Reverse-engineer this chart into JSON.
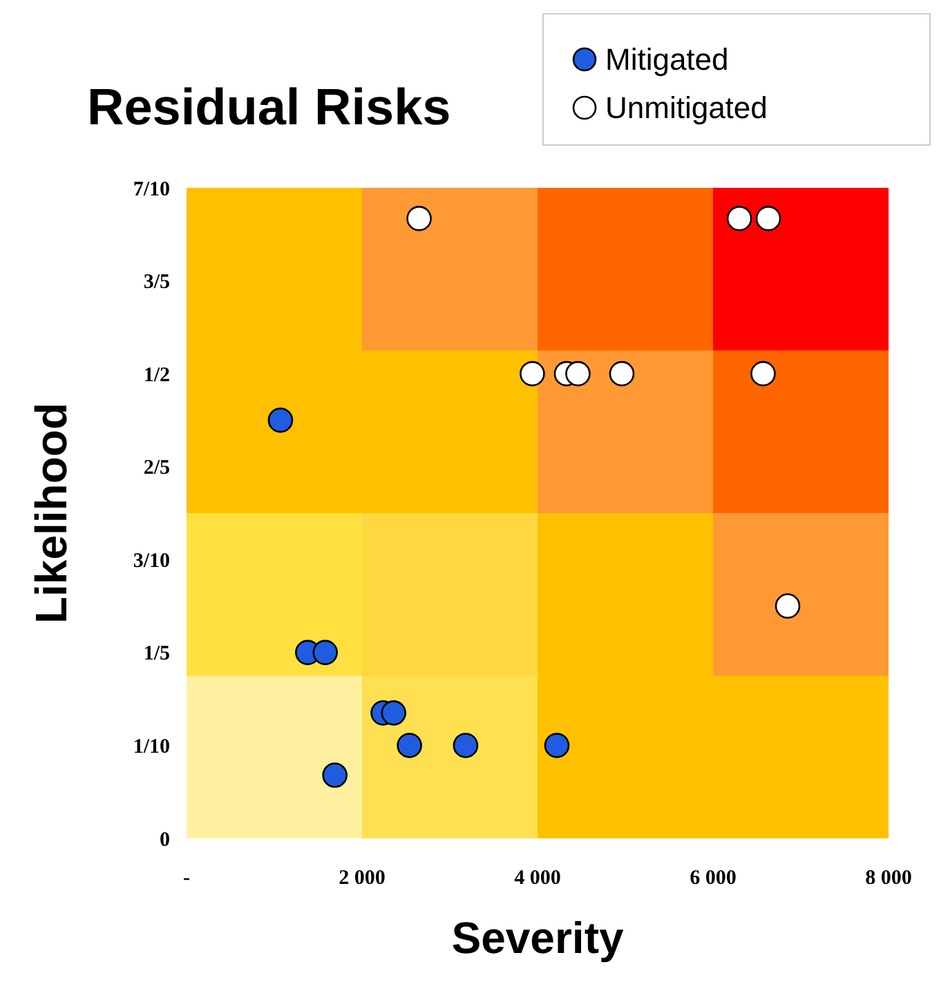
{
  "chart_data": {
    "type": "scatter",
    "title": "Residual Risks",
    "xlabel": "Severity",
    "ylabel": "Likelihood",
    "xlim": [
      0,
      8000
    ],
    "xticks": [
      {
        "value": 0,
        "label": "-"
      },
      {
        "value": 2000,
        "label": "2 000"
      },
      {
        "value": 4000,
        "label": "4 000"
      },
      {
        "value": 6000,
        "label": "6 000"
      },
      {
        "value": 8000,
        "label": "8 000"
      }
    ],
    "ylim": [
      0,
      0.7
    ],
    "yticks": [
      {
        "value": 0,
        "label": "0"
      },
      {
        "value": 0.1,
        "label": "1/10"
      },
      {
        "value": 0.2,
        "label": "1/5"
      },
      {
        "value": 0.3,
        "label": "3/10"
      },
      {
        "value": 0.4,
        "label": "2/5"
      },
      {
        "value": 0.5,
        "label": "1/2"
      },
      {
        "value": 0.6,
        "label": "3/5"
      },
      {
        "value": 0.7,
        "label": "7/10"
      }
    ],
    "legend": "top right",
    "marker": "circle",
    "grid": false,
    "series": [
      {
        "name": "Mitigated",
        "color": "#1f5ce0",
        "x": [
          1070,
          1380,
          1580,
          2240,
          2360,
          2540,
          3180,
          4220,
          1690
        ],
        "values": [
          0.45,
          0.2,
          0.2,
          0.135,
          0.135,
          0.1,
          0.1,
          0.1,
          0.068
        ]
      },
      {
        "name": "Unmitigated",
        "color": "#ffffff",
        "x": [
          2650,
          6300,
          6630,
          3940,
          4330,
          4460,
          4960,
          6570,
          6850
        ],
        "values": [
          0.667,
          0.667,
          0.667,
          0.5,
          0.5,
          0.5,
          0.5,
          0.5,
          0.25
        ]
      }
    ]
  }
}
